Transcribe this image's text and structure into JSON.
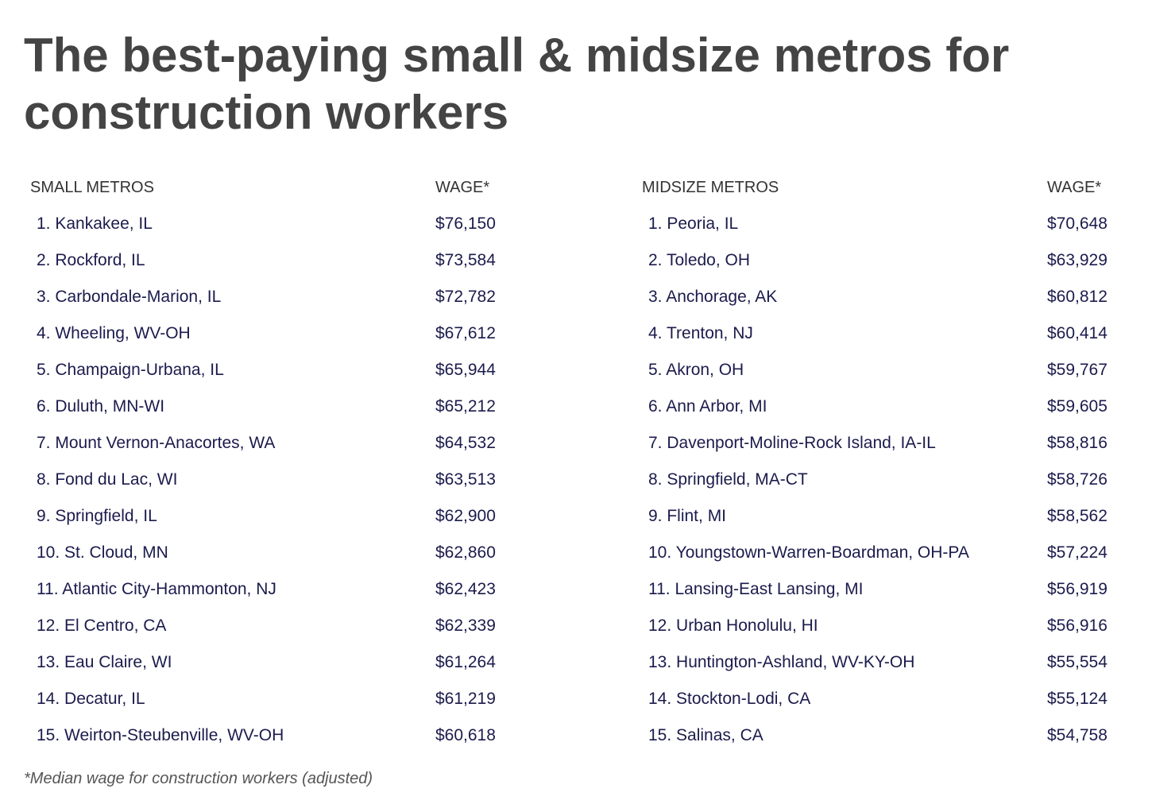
{
  "title": "The best-paying small & midsize metros for construction workers",
  "tables": [
    {
      "header": [
        "SMALL METROS",
        "WAGE*"
      ],
      "rows": [
        [
          "1. Kankakee, IL",
          "$76,150"
        ],
        [
          "2. Rockford, IL",
          "$73,584"
        ],
        [
          "3. Carbondale-Marion, IL",
          "$72,782"
        ],
        [
          "4. Wheeling, WV-OH",
          "$67,612"
        ],
        [
          "5. Champaign-Urbana, IL",
          "$65,944"
        ],
        [
          "6. Duluth, MN-WI",
          "$65,212"
        ],
        [
          "7. Mount Vernon-Anacortes, WA",
          "$64,532"
        ],
        [
          "8. Fond du Lac, WI",
          "$63,513"
        ],
        [
          "9. Springfield, IL",
          "$62,900"
        ],
        [
          "10. St. Cloud, MN",
          "$62,860"
        ],
        [
          "11. Atlantic City-Hammonton, NJ",
          "$62,423"
        ],
        [
          "12. El Centro, CA",
          "$62,339"
        ],
        [
          "13. Eau Claire, WI",
          "$61,264"
        ],
        [
          "14. Decatur, IL",
          "$61,219"
        ],
        [
          "15. Weirton-Steubenville, WV-OH",
          "$60,618"
        ]
      ]
    },
    {
      "header": [
        "MIDSIZE METROS",
        "WAGE*"
      ],
      "rows": [
        [
          "1. Peoria, IL",
          "$70,648"
        ],
        [
          "2. Toledo, OH",
          "$63,929"
        ],
        [
          "3. Anchorage, AK",
          "$60,812"
        ],
        [
          "4. Trenton, NJ",
          "$60,414"
        ],
        [
          "5. Akron, OH",
          "$59,767"
        ],
        [
          "6. Ann Arbor, MI",
          "$59,605"
        ],
        [
          "7. Davenport-Moline-Rock Island, IA-IL",
          "$58,816"
        ],
        [
          "8. Springfield, MA-CT",
          "$58,726"
        ],
        [
          "9. Flint, MI",
          "$58,562"
        ],
        [
          "10. Youngstown-Warren-Boardman, OH-PA",
          "$57,224"
        ],
        [
          "11. Lansing-East Lansing, MI",
          "$56,919"
        ],
        [
          "12. Urban Honolulu, HI",
          "$56,916"
        ],
        [
          "13. Huntington-Ashland, WV-KY-OH",
          "$55,554"
        ],
        [
          "14. Stockton-Lodi, CA",
          "$55,124"
        ],
        [
          "15. Salinas, CA",
          "$54,758"
        ]
      ]
    }
  ],
  "footnote": "*Median wage for construction workers (adjusted)"
}
